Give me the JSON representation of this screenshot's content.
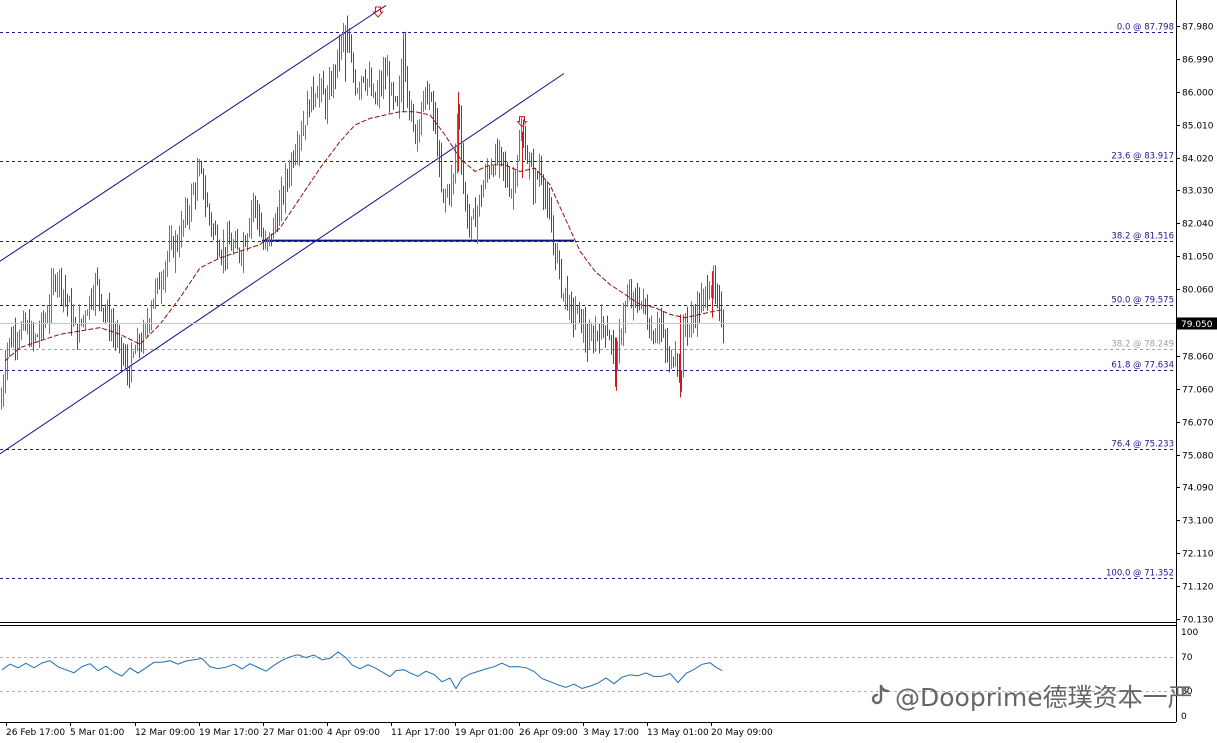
{
  "watermark": "@Dooprime德璞资本一严",
  "watermark_icon": "tiktok-note-icon",
  "current_price": "79.050",
  "colors": {
    "up": "#4a7cb8",
    "down": "#d01818",
    "ma": "#8b1010",
    "channel": "#10108c",
    "fib": "#1a1a8c",
    "fib_muted": "#a0a0a0",
    "grid": "#000000",
    "price_box": "#000000",
    "arrow": "#d01818",
    "rsi": "#1f6fb5"
  },
  "price_axis": {
    "labels": [
      "87.980",
      "86.990",
      "86.000",
      "85.010",
      "84.020",
      "83.030",
      "82.040",
      "81.050",
      "80.060",
      "79.050",
      "78.060",
      "77.060",
      "76.070",
      "75.080",
      "74.090",
      "73.100",
      "72.110",
      "71.120",
      "70.130"
    ]
  },
  "time_axis": {
    "labels": [
      "26 Feb 17:00",
      "5 Mar 01:00",
      "12 Mar 09:00",
      "19 Mar 17:00",
      "27 Mar 01:00",
      "4 Apr 09:00",
      "11 Apr 17:00",
      "19 Apr 01:00",
      "26 Apr 09:00",
      "3 May 17:00",
      "13 May 01:00",
      "20 May 09:00"
    ]
  },
  "fib_levels": [
    {
      "label": "0.0 @ 87.798",
      "price": 87.798,
      "muted": false
    },
    {
      "label": "23.6 @ 83.917",
      "price": 83.917,
      "muted": false
    },
    {
      "label": "38.2 @ 81.516",
      "price": 81.516,
      "muted": false
    },
    {
      "label": "50.0 @ 79.575",
      "price": 79.575,
      "muted": false
    },
    {
      "label": "38.2 @ 78.249",
      "price": 78.249,
      "muted": true
    },
    {
      "label": "61.8 @ 77.634",
      "price": 77.634,
      "muted": false
    },
    {
      "label": "76.4 @ 75.233",
      "price": 75.233,
      "muted": false
    },
    {
      "label": "100.0 @ 71.352",
      "price": 71.352,
      "muted": false
    }
  ],
  "rsi_axis": {
    "labels": [
      "100",
      "70",
      "30",
      "0"
    ]
  },
  "chart_data": {
    "type": "candlestick",
    "instrument": "",
    "ylim": [
      69.9,
      88.5
    ],
    "grid": false,
    "x_labels": [
      "26 Feb 17:00",
      "5 Mar 01:00",
      "12 Mar 09:00",
      "19 Mar 17:00",
      "27 Mar 01:00",
      "4 Apr 09:00",
      "11 Apr 17:00",
      "19 Apr 01:00",
      "26 Apr 09:00",
      "3 May 17:00",
      "13 May 01:00",
      "20 May 09:00"
    ],
    "close_path": [
      [
        0,
        76.5
      ],
      [
        6,
        78.3
      ],
      [
        14,
        78.7
      ],
      [
        24,
        78.9
      ],
      [
        34,
        78.5
      ],
      [
        46,
        79.2
      ],
      [
        56,
        80.6
      ],
      [
        66,
        79.8
      ],
      [
        76,
        78.7
      ],
      [
        86,
        79.5
      ],
      [
        96,
        80.3
      ],
      [
        104,
        79.4
      ],
      [
        112,
        78.9
      ],
      [
        120,
        78.2
      ],
      [
        128,
        77.5
      ],
      [
        136,
        78.3
      ],
      [
        144,
        78.6
      ],
      [
        152,
        79.8
      ],
      [
        160,
        80.3
      ],
      [
        168,
        81.2
      ],
      [
        176,
        81.4
      ],
      [
        186,
        82.3
      ],
      [
        194,
        83.1
      ],
      [
        200,
        83.6
      ],
      [
        206,
        82.6
      ],
      [
        214,
        81.7
      ],
      [
        222,
        81.2
      ],
      [
        230,
        81.4
      ],
      [
        238,
        81.1
      ],
      [
        246,
        81.7
      ],
      [
        252,
        82.8
      ],
      [
        258,
        82.2
      ],
      [
        264,
        81.2
      ],
      [
        272,
        81.8
      ],
      [
        280,
        82.6
      ],
      [
        288,
        83.6
      ],
      [
        296,
        84.5
      ],
      [
        304,
        85.1
      ],
      [
        310,
        85.8
      ],
      [
        318,
        86.2
      ],
      [
        326,
        85.6
      ],
      [
        334,
        86.6
      ],
      [
        340,
        87.4
      ],
      [
        345,
        87.8
      ],
      [
        350,
        86.9
      ],
      [
        356,
        86.1
      ],
      [
        362,
        86.6
      ],
      [
        368,
        86.3
      ],
      [
        374,
        85.6
      ],
      [
        380,
        86.2
      ],
      [
        386,
        86.6
      ],
      [
        392,
        85.7
      ],
      [
        398,
        85.4
      ],
      [
        403,
        87.6
      ],
      [
        408,
        85.8
      ],
      [
        414,
        84.6
      ],
      [
        420,
        85.5
      ],
      [
        428,
        86.0
      ],
      [
        436,
        84.8
      ],
      [
        442,
        82.6
      ],
      [
        448,
        83.1
      ],
      [
        454,
        83.4
      ],
      [
        458,
        85.8
      ],
      [
        464,
        82.7
      ],
      [
        470,
        81.9
      ],
      [
        476,
        82.3
      ],
      [
        482,
        83.1
      ],
      [
        488,
        83.7
      ],
      [
        494,
        83.9
      ],
      [
        500,
        84.0
      ],
      [
        506,
        83.4
      ],
      [
        512,
        83.0
      ],
      [
        518,
        84.4
      ],
      [
        522,
        84.7
      ],
      [
        528,
        83.9
      ],
      [
        534,
        83.2
      ],
      [
        540,
        83.8
      ],
      [
        546,
        82.6
      ],
      [
        552,
        81.6
      ],
      [
        558,
        80.8
      ],
      [
        562,
        79.9
      ],
      [
        566,
        80.0
      ],
      [
        570,
        79.2
      ],
      [
        576,
        79.4
      ],
      [
        582,
        79.0
      ],
      [
        588,
        78.3
      ],
      [
        594,
        78.7
      ],
      [
        600,
        78.9
      ],
      [
        606,
        79.0
      ],
      [
        612,
        78.3
      ],
      [
        616,
        77.7
      ],
      [
        622,
        79.2
      ],
      [
        628,
        79.8
      ],
      [
        634,
        79.6
      ],
      [
        640,
        79.8
      ],
      [
        646,
        79.3
      ],
      [
        652,
        78.6
      ],
      [
        658,
        79.2
      ],
      [
        664,
        78.4
      ],
      [
        670,
        77.7
      ],
      [
        676,
        78.4
      ],
      [
        680,
        77.1
      ],
      [
        684,
        79.2
      ],
      [
        690,
        78.9
      ],
      [
        696,
        79.5
      ],
      [
        702,
        79.6
      ],
      [
        708,
        80.2
      ],
      [
        712,
        80.3
      ],
      [
        716,
        79.6
      ],
      [
        720,
        79.3
      ],
      [
        724,
        79.05
      ]
    ],
    "ma_path": [
      [
        5,
        77.9
      ],
      [
        20,
        78.3
      ],
      [
        40,
        78.5
      ],
      [
        60,
        78.7
      ],
      [
        80,
        78.8
      ],
      [
        100,
        78.9
      ],
      [
        120,
        78.7
      ],
      [
        140,
        78.4
      ],
      [
        160,
        79.0
      ],
      [
        180,
        79.8
      ],
      [
        200,
        80.7
      ],
      [
        220,
        81.0
      ],
      [
        240,
        81.2
      ],
      [
        260,
        81.4
      ],
      [
        280,
        81.9
      ],
      [
        300,
        82.8
      ],
      [
        320,
        83.7
      ],
      [
        340,
        84.5
      ],
      [
        355,
        85.0
      ],
      [
        370,
        85.2
      ],
      [
        385,
        85.3
      ],
      [
        400,
        85.4
      ],
      [
        415,
        85.4
      ],
      [
        430,
        85.3
      ],
      [
        445,
        84.7
      ],
      [
        460,
        84.0
      ],
      [
        475,
        83.6
      ],
      [
        490,
        83.8
      ],
      [
        505,
        83.8
      ],
      [
        520,
        83.6
      ],
      [
        535,
        83.7
      ],
      [
        550,
        83.2
      ],
      [
        565,
        82.2
      ],
      [
        580,
        81.2
      ],
      [
        595,
        80.6
      ],
      [
        610,
        80.2
      ],
      [
        625,
        79.9
      ],
      [
        640,
        79.6
      ],
      [
        655,
        79.5
      ],
      [
        670,
        79.3
      ],
      [
        685,
        79.2
      ],
      [
        700,
        79.3
      ],
      [
        715,
        79.4
      ],
      [
        724,
        79.45
      ]
    ],
    "channel_lines": [
      {
        "x1": 0,
        "y1": 80.9,
        "x2": 386,
        "y2": 88.6
      },
      {
        "x1": 0,
        "y1": 75.1,
        "x2": 564,
        "y2": 86.55
      }
    ],
    "horizontal_segment": {
      "x1": 262,
      "x2": 574,
      "y": 81.52
    },
    "arrows": [
      {
        "x": 378,
        "price": 88.4
      },
      {
        "x": 522,
        "price": 85.1
      }
    ],
    "fib_levels": [
      87.798,
      83.917,
      81.516,
      79.575,
      78.249,
      77.634,
      75.233,
      71.352
    ],
    "current_price": 79.05,
    "rsi": {
      "levels": [
        70,
        30
      ],
      "path": [
        [
          2,
          55
        ],
        [
          10,
          63
        ],
        [
          18,
          58
        ],
        [
          26,
          64
        ],
        [
          34,
          57
        ],
        [
          42,
          62
        ],
        [
          50,
          66
        ],
        [
          58,
          60
        ],
        [
          66,
          54
        ],
        [
          74,
          52
        ],
        [
          82,
          58
        ],
        [
          90,
          62
        ],
        [
          98,
          55
        ],
        [
          106,
          60
        ],
        [
          114,
          52
        ],
        [
          122,
          48
        ],
        [
          130,
          56
        ],
        [
          138,
          52
        ],
        [
          146,
          58
        ],
        [
          154,
          65
        ],
        [
          162,
          63
        ],
        [
          170,
          66
        ],
        [
          178,
          62
        ],
        [
          186,
          67
        ],
        [
          194,
          68
        ],
        [
          202,
          70
        ],
        [
          210,
          60
        ],
        [
          218,
          55
        ],
        [
          226,
          58
        ],
        [
          234,
          62
        ],
        [
          242,
          57
        ],
        [
          250,
          63
        ],
        [
          258,
          58
        ],
        [
          266,
          54
        ],
        [
          274,
          60
        ],
        [
          282,
          66
        ],
        [
          290,
          70
        ],
        [
          298,
          74
        ],
        [
          306,
          70
        ],
        [
          314,
          72
        ],
        [
          322,
          68
        ],
        [
          330,
          70
        ],
        [
          338,
          75
        ],
        [
          346,
          68
        ],
        [
          352,
          62
        ],
        [
          360,
          56
        ],
        [
          368,
          62
        ],
        [
          376,
          58
        ],
        [
          384,
          52
        ],
        [
          390,
          48
        ],
        [
          396,
          55
        ],
        [
          404,
          56
        ],
        [
          410,
          52
        ],
        [
          418,
          46
        ],
        [
          426,
          52
        ],
        [
          434,
          48
        ],
        [
          442,
          40
        ],
        [
          450,
          44
        ],
        [
          456,
          32
        ],
        [
          462,
          46
        ],
        [
          470,
          50
        ],
        [
          478,
          52
        ],
        [
          486,
          57
        ],
        [
          494,
          60
        ],
        [
          502,
          62
        ],
        [
          510,
          58
        ],
        [
          518,
          60
        ],
        [
          526,
          56
        ],
        [
          534,
          52
        ],
        [
          542,
          46
        ],
        [
          550,
          40
        ],
        [
          558,
          38
        ],
        [
          566,
          35
        ],
        [
          574,
          37
        ],
        [
          582,
          34
        ],
        [
          590,
          37
        ],
        [
          598,
          40
        ],
        [
          606,
          44
        ],
        [
          614,
          40
        ],
        [
          622,
          46
        ],
        [
          630,
          50
        ],
        [
          638,
          48
        ],
        [
          646,
          52
        ],
        [
          654,
          48
        ],
        [
          662,
          46
        ],
        [
          670,
          50
        ],
        [
          678,
          40
        ],
        [
          686,
          50
        ],
        [
          694,
          56
        ],
        [
          702,
          62
        ],
        [
          710,
          64
        ],
        [
          716,
          58
        ],
        [
          722,
          54
        ]
      ]
    }
  }
}
